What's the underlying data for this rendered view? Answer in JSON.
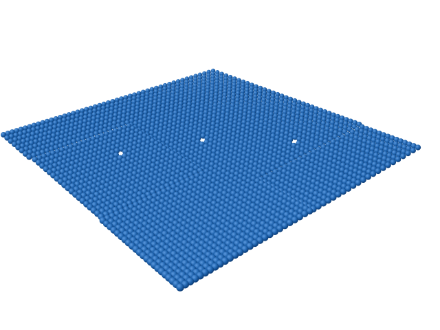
{
  "scene": {
    "subject": "atomic-lattice-sheet",
    "background_color": "#ffffff",
    "sphere_color": "#1f63ad",
    "sphere_highlight": "#5e9be0",
    "sphere_shadow": "#0b3a73"
  }
}
